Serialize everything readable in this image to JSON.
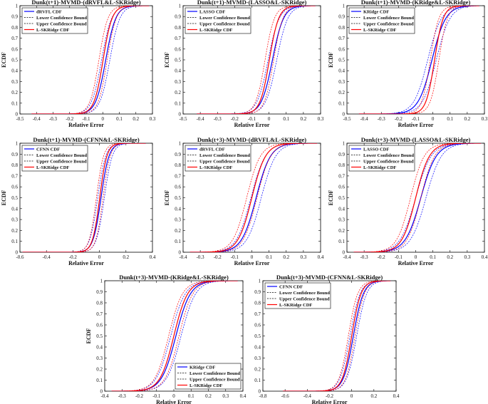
{
  "figure": {
    "background": "#ffffff"
  },
  "chart_data": [
    {
      "type": "line",
      "title": "Dunk(t+1)-MVMD-(dRVFL&L-SKRidge)",
      "xlabel": "Relative Error",
      "ylabel": "ECDF",
      "xlim": [
        -0.5,
        0.3
      ],
      "ylim": [
        0,
        1
      ],
      "xstep": 0.1,
      "ystep": 0.1,
      "x_ticks": [
        "-0.5",
        "-0.4",
        "-0.3",
        "-0.2",
        "-0.1",
        "0",
        "0.1",
        "0.2",
        "0.3"
      ],
      "y_ticks": [
        "0",
        "0.1",
        "0.2",
        "0.3",
        "0.4",
        "0.5",
        "0.6",
        "0.7",
        "0.8",
        "0.9",
        "1"
      ],
      "legend_loc": "top-left",
      "legend": [
        "dRVFL CDF",
        "Lower Confidence Bound",
        "Upper Confidence Bound",
        "L-SKRidge CDF"
      ],
      "series": [
        {
          "name": "dRVFL CDF",
          "color": "#0000ff",
          "center": 0.018,
          "scale": 0.03,
          "xmin": -0.43,
          "xmax": 0.28
        },
        {
          "name": "L-SKRidge CDF",
          "color": "#ff0000",
          "center": 0.002,
          "scale": 0.027,
          "xmin": -0.43,
          "xmax": 0.28
        }
      ],
      "ci_width": 0.025
    },
    {
      "type": "line",
      "title": "Dunk(t+1)-MVMD-(LASSO&L-SKRidge)",
      "xlabel": "Relative Error",
      "ylabel": "ECDF",
      "xlim": [
        -0.5,
        0.3
      ],
      "ylim": [
        0,
        1
      ],
      "xstep": 0.1,
      "ystep": 0.1,
      "x_ticks": [
        "-0.5",
        "-0.4",
        "-0.3",
        "-0.2",
        "-0.1",
        "0",
        "0.1",
        "0.2",
        "0.3"
      ],
      "y_ticks": [
        "0",
        "0.1",
        "0.2",
        "0.3",
        "0.4",
        "0.5",
        "0.6",
        "0.7",
        "0.8",
        "0.9",
        "1"
      ],
      "legend_loc": "top-left",
      "legend": [
        "LASSO CDF",
        "Lower Confidence Bound",
        "Upper Confidence Bound",
        "L-SKRidge CDF"
      ],
      "series": [
        {
          "name": "LASSO CDF",
          "color": "#0000ff",
          "center": 0.02,
          "scale": 0.032,
          "xmin": -0.42,
          "xmax": 0.27
        },
        {
          "name": "L-SKRidge CDF",
          "color": "#ff0000",
          "center": 0.002,
          "scale": 0.027,
          "xmin": -0.42,
          "xmax": 0.27
        }
      ],
      "ci_width": 0.025
    },
    {
      "type": "line",
      "title": "Dunk(t+1)-MVMD-(KRidge&L-SKRidge)",
      "xlabel": "Relative Error",
      "ylabel": "ECDF",
      "xlim": [
        -0.5,
        0.3
      ],
      "ylim": [
        0,
        1
      ],
      "xstep": 0.1,
      "ystep": 0.1,
      "x_ticks": [
        "-0.5",
        "-0.4",
        "-0.3",
        "-0.2",
        "-0.1",
        "0",
        "0.1",
        "0.2",
        "0.3"
      ],
      "y_ticks": [
        "0",
        "0.1",
        "0.2",
        "0.3",
        "0.4",
        "0.5",
        "0.6",
        "0.7",
        "0.8",
        "0.9",
        "1"
      ],
      "legend_loc": "top-left",
      "legend": [
        "KRidge CDF",
        "Lower Confidence Bound",
        "Upper Confidence Bound",
        "L-SKRidge CDF"
      ],
      "series": [
        {
          "name": "KRidge CDF",
          "color": "#0000ff",
          "center": -0.005,
          "scale": 0.04,
          "xmin": -0.43,
          "xmax": 0.27
        },
        {
          "name": "L-SKRidge CDF",
          "color": "#ff0000",
          "center": 0.01,
          "scale": 0.025,
          "xmin": -0.43,
          "xmax": 0.27
        }
      ],
      "ci_width": 0.025
    },
    {
      "type": "line",
      "title": "Dunk(t+1)-MVMD-(CFNN&L-SKRidge)",
      "xlabel": "Relative Error",
      "ylabel": "ECDF",
      "xlim": [
        -0.6,
        0.4
      ],
      "ylim": [
        0,
        1
      ],
      "xstep": 0.2,
      "ystep": 0.1,
      "x_ticks": [
        "-0.6",
        "-0.4",
        "-0.2",
        "0",
        "0.2",
        "0.4"
      ],
      "y_ticks": [
        "0",
        "0.1",
        "0.2",
        "0.3",
        "0.4",
        "0.5",
        "0.6",
        "0.7",
        "0.8",
        "0.9",
        "1"
      ],
      "legend_loc": "top-left",
      "legend": [
        "CFNN CDF",
        "Lower Confidence Bound",
        "Upper Confidence Bound",
        "L-SKRidge CDF"
      ],
      "series": [
        {
          "name": "CFNN CDF",
          "color": "#0000ff",
          "center": 0.012,
          "scale": 0.03,
          "xmin": -0.58,
          "xmax": 0.35
        },
        {
          "name": "L-SKRidge CDF",
          "color": "#ff0000",
          "center": 0.002,
          "scale": 0.027,
          "xmin": -0.58,
          "xmax": 0.35
        }
      ],
      "ci_width": 0.025
    },
    {
      "type": "line",
      "title": "Dunk(t+3)-MVMD-(dRVFL&L-SKRidge)",
      "xlabel": "Relative Error",
      "ylabel": "ECDF",
      "xlim": [
        -0.4,
        0.4
      ],
      "ylim": [
        0,
        1
      ],
      "xstep": 0.1,
      "ystep": 0.1,
      "x_ticks": [
        "-0.4",
        "-0.3",
        "-0.2",
        "-0.1",
        "0",
        "0.1",
        "0.2",
        "0.3",
        "0.4"
      ],
      "y_ticks": [
        "0",
        "0.1",
        "0.2",
        "0.3",
        "0.4",
        "0.5",
        "0.6",
        "0.7",
        "0.8",
        "0.9",
        "1"
      ],
      "legend_loc": "top-left",
      "legend": [
        "dRVFL CDF",
        "Lower Confidence Bound",
        "Upper Confidence Bound",
        "L-SKRidge CDF"
      ],
      "series": [
        {
          "name": "dRVFL CDF",
          "color": "#0000ff",
          "center": 0.025,
          "scale": 0.042,
          "xmin": -0.36,
          "xmax": 0.38
        },
        {
          "name": "L-SKRidge CDF",
          "color": "#ff0000",
          "center": 0.0,
          "scale": 0.04,
          "xmin": -0.36,
          "xmax": 0.38
        }
      ],
      "ci_width": 0.03
    },
    {
      "type": "line",
      "title": "Dunk(t+3)-MVMD-(LASSO&L-SKRidge)",
      "xlabel": "Relative Error",
      "ylabel": "ECDF",
      "xlim": [
        -0.4,
        0.4
      ],
      "ylim": [
        0,
        1
      ],
      "xstep": 0.1,
      "ystep": 0.1,
      "x_ticks": [
        "-0.4",
        "-0.3",
        "-0.2",
        "-0.1",
        "0",
        "0.1",
        "0.2",
        "0.3",
        "0.4"
      ],
      "y_ticks": [
        "0",
        "0.1",
        "0.2",
        "0.3",
        "0.4",
        "0.5",
        "0.6",
        "0.7",
        "0.8",
        "0.9",
        "1"
      ],
      "legend_loc": "top-left",
      "legend": [
        "LASSO CDF",
        "Lower Confidence Bound",
        "Upper Confidence Bound",
        "L-SKRidge CDF"
      ],
      "series": [
        {
          "name": "LASSO CDF",
          "color": "#0000ff",
          "center": 0.03,
          "scale": 0.045,
          "xmin": -0.36,
          "xmax": 0.38
        },
        {
          "name": "L-SKRidge CDF",
          "color": "#ff0000",
          "center": 0.0,
          "scale": 0.04,
          "xmin": -0.36,
          "xmax": 0.38
        }
      ],
      "ci_width": 0.03
    },
    {
      "type": "line",
      "title": "Dunk(t+3)-MVMD-(KRidge&L-SKRidge)",
      "xlabel": "Relative Error",
      "ylabel": "ECDF",
      "xlim": [
        -0.4,
        0.4
      ],
      "ylim": [
        0,
        1
      ],
      "xstep": 0.1,
      "ystep": 0.1,
      "x_ticks": [
        "-0.4",
        "-0.3",
        "-0.2",
        "-0.1",
        "0",
        "0.1",
        "0.2",
        "0.3",
        "0.4"
      ],
      "y_ticks": [
        "0",
        "0.1",
        "0.2",
        "0.3",
        "0.4",
        "0.5",
        "0.6",
        "0.7",
        "0.8",
        "0.9",
        "1"
      ],
      "legend_loc": "bottom-right",
      "legend": [
        "KRidge CDF",
        "Lower Confidence Bound",
        "Upper Confidence Bound",
        "L-SKRidge CDF"
      ],
      "series": [
        {
          "name": "KRidge CDF",
          "color": "#0000ff",
          "center": 0.012,
          "scale": 0.042,
          "xmin": -0.36,
          "xmax": 0.37
        },
        {
          "name": "L-SKRidge CDF",
          "color": "#ff0000",
          "center": 0.0,
          "scale": 0.04,
          "xmin": -0.36,
          "xmax": 0.37
        }
      ],
      "ci_width": 0.03
    },
    {
      "type": "line",
      "title": "Dunk(t+3)-MVMD-(CFNN&L-SKRidge)",
      "xlabel": "Relative Error",
      "ylabel": "",
      "xlim": [
        -0.8,
        0.4
      ],
      "ylim": [
        0,
        1
      ],
      "xstep": 0.2,
      "ystep": 0.1,
      "x_ticks": [
        "-0.8",
        "-0.6",
        "-0.4",
        "-0.2",
        "0",
        "0.2",
        "0.4"
      ],
      "y_ticks": [
        "0",
        "0.1",
        "0.2",
        "0.3",
        "0.4",
        "0.5",
        "0.6",
        "0.7",
        "0.8",
        "0.9",
        "1"
      ],
      "legend_loc": "top-left",
      "legend": [
        "CFNN CDF",
        "Lower Confidence Bound",
        "Upper Confidence Bound",
        "L-SKRidge CDF"
      ],
      "series": [
        {
          "name": "CFNN CDF",
          "color": "#0000ff",
          "center": 0.015,
          "scale": 0.045,
          "xmin": -0.62,
          "xmax": 0.35
        },
        {
          "name": "L-SKRidge CDF",
          "color": "#ff0000",
          "center": 0.0,
          "scale": 0.042,
          "xmin": -0.62,
          "xmax": 0.35
        }
      ],
      "ci_width": 0.03
    }
  ]
}
